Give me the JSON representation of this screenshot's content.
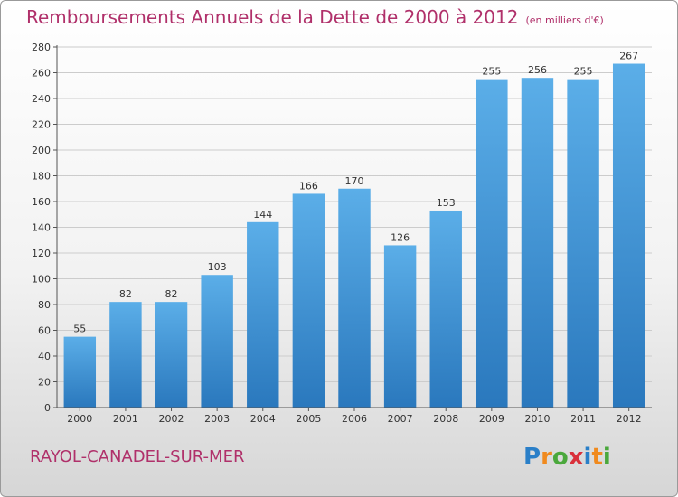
{
  "title": "Remboursements Annuels de la Dette de 2000 à 2012",
  "unit": "(en milliers d'€)",
  "location": "RAYOL-CANADEL-SUR-MER",
  "brand": {
    "letters": [
      "P",
      "r",
      "o",
      "x",
      "i",
      "t",
      "i"
    ],
    "colors": [
      "#2a7fc8",
      "#f08a1e",
      "#4aa83c",
      "#d9303a",
      "#2a7fc8",
      "#f08a1e",
      "#4aa83c"
    ]
  },
  "colors": {
    "title": "#b0306a",
    "bar_light": "#5baee8",
    "bar_dark": "#2a78bd"
  },
  "chart_data": {
    "type": "bar",
    "title": "Remboursements Annuels de la Dette de 2000 à 2012",
    "categories": [
      "2000",
      "2001",
      "2002",
      "2003",
      "2004",
      "2005",
      "2006",
      "2007",
      "2008",
      "2009",
      "2010",
      "2011",
      "2012"
    ],
    "values": [
      55,
      82,
      82,
      103,
      144,
      166,
      170,
      126,
      153,
      255,
      256,
      255,
      267
    ],
    "data_labels": [
      "55",
      "82",
      "82",
      "103",
      "144",
      "166",
      "170",
      "126",
      "153",
      "255",
      "256",
      "255",
      "267"
    ],
    "ylim": [
      0,
      280
    ],
    "yticks": [
      "0",
      "20",
      "40",
      "60",
      "80",
      "100",
      "120",
      "140",
      "160",
      "180",
      "200",
      "220",
      "240",
      "260",
      "280"
    ],
    "grid": true,
    "xlabel": "",
    "ylabel": ""
  }
}
